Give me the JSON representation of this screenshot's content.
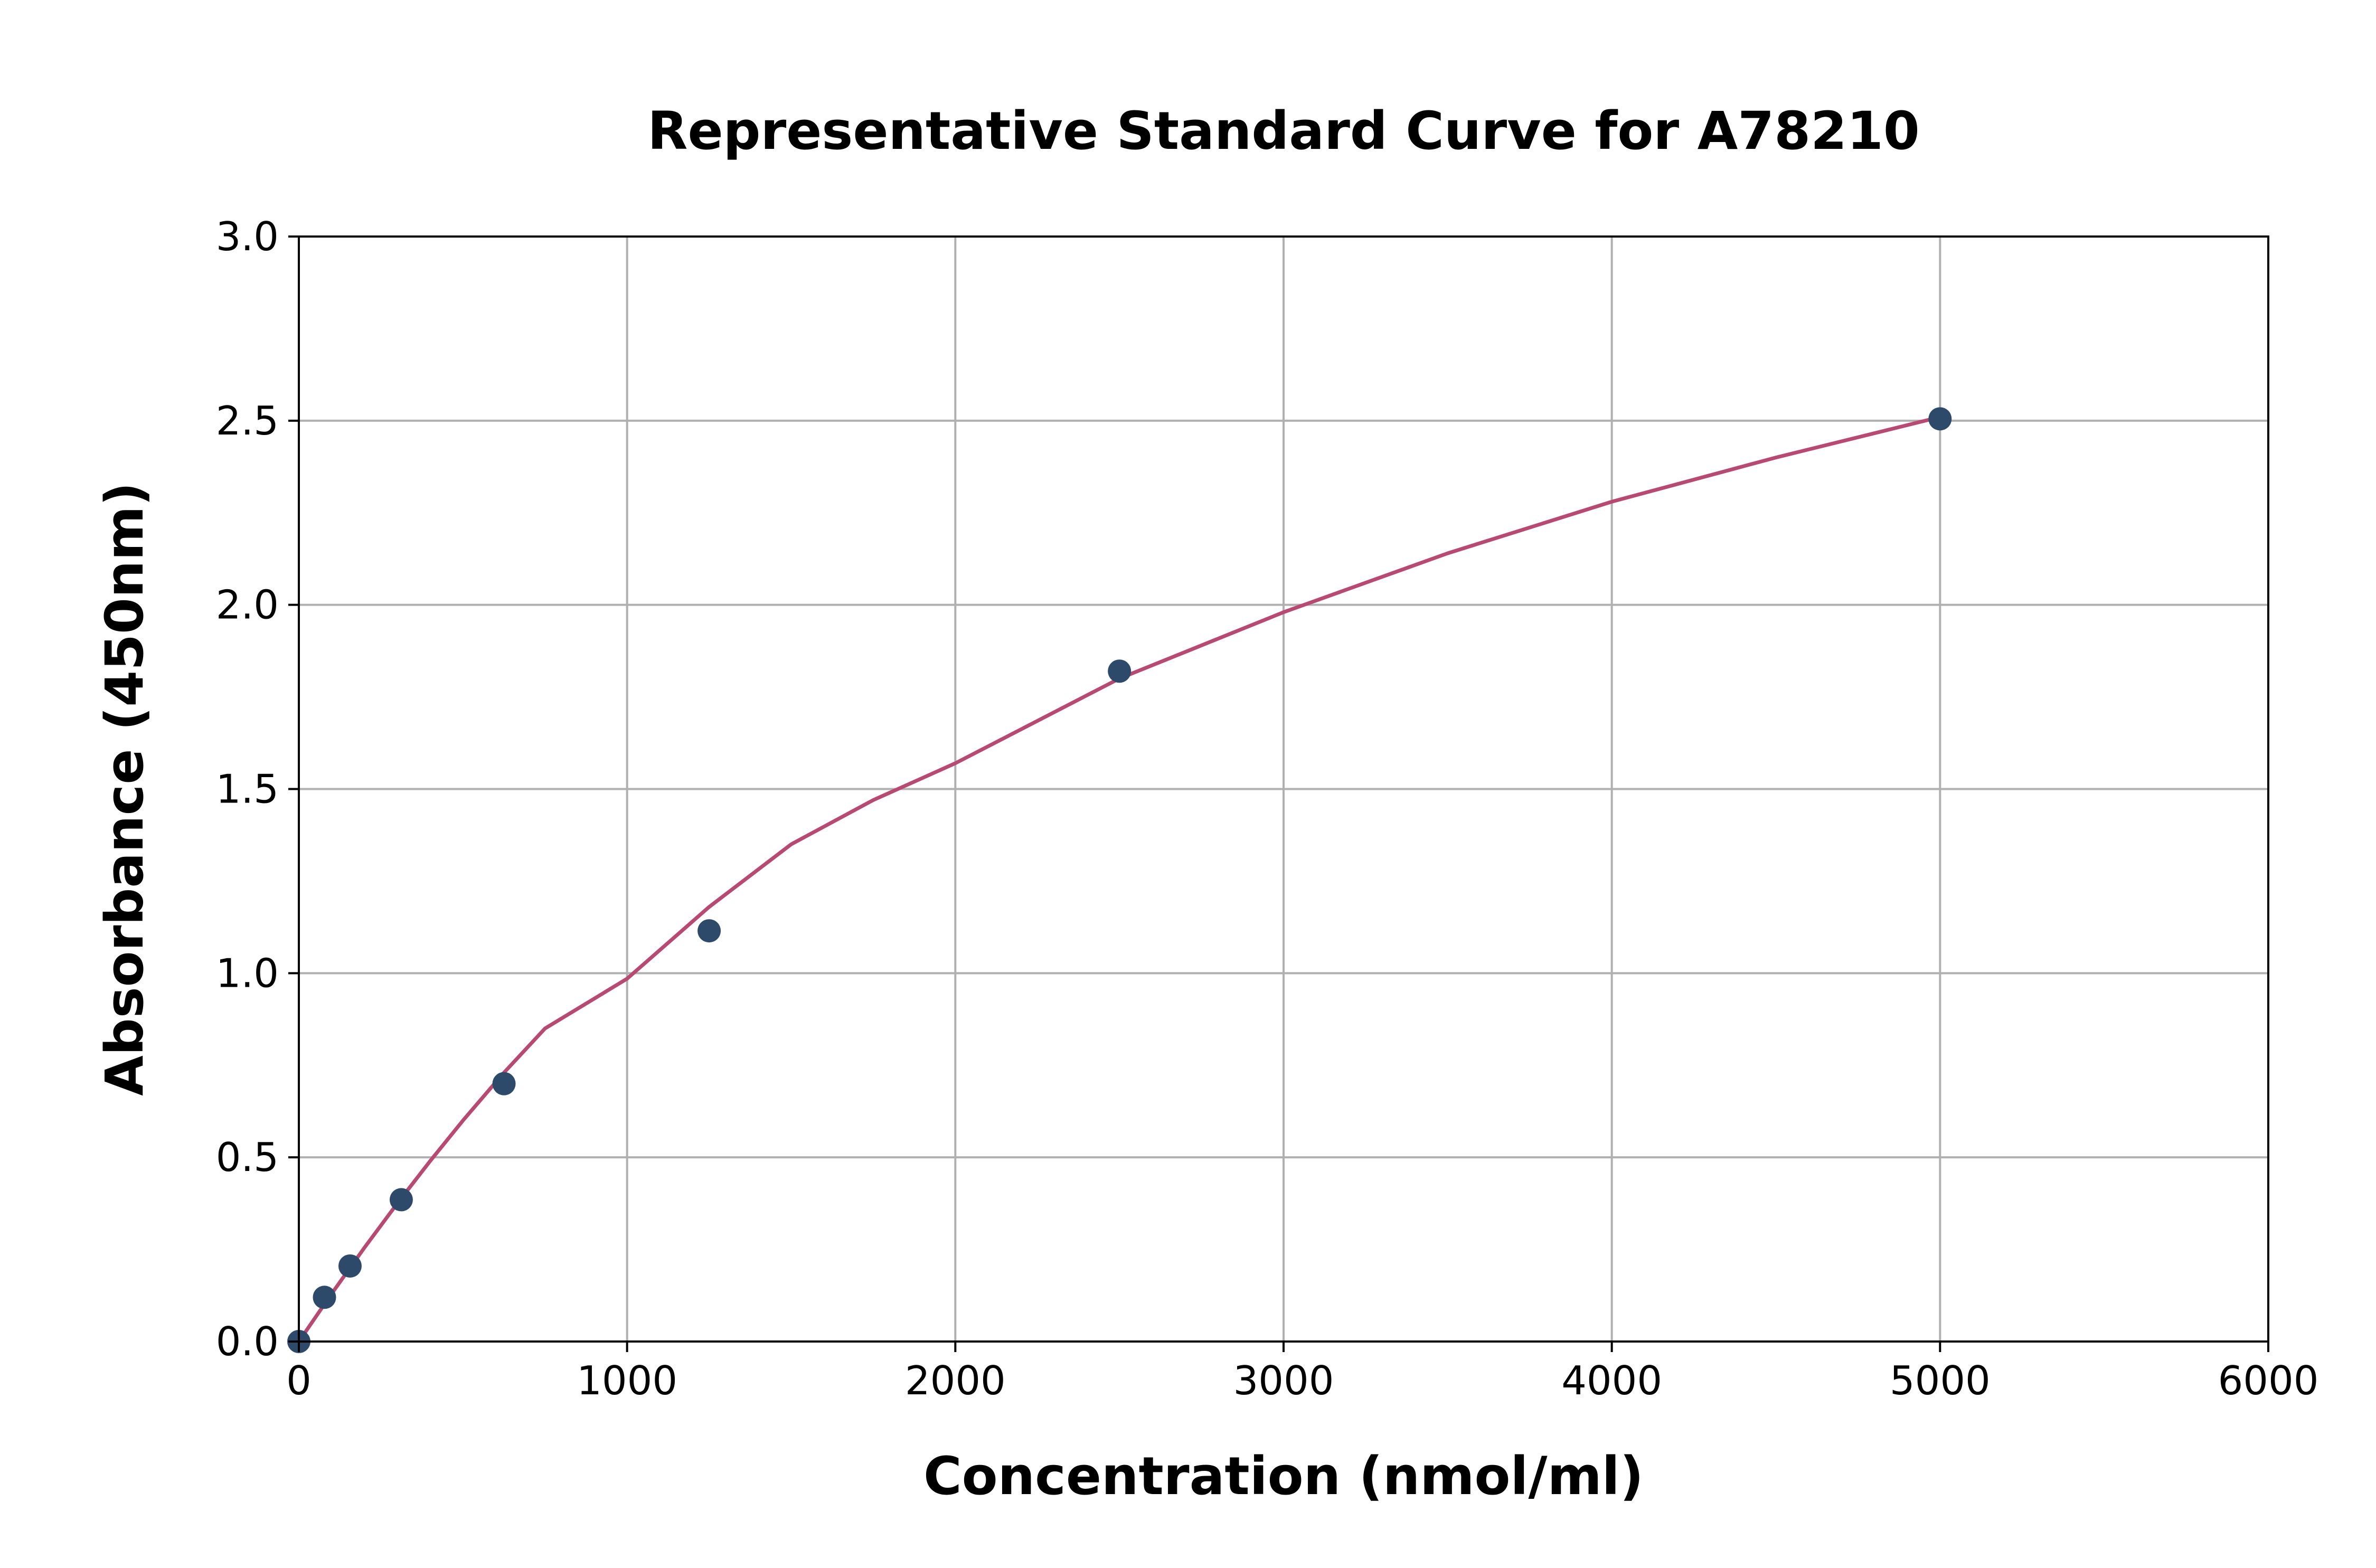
{
  "chart_data": {
    "type": "scatter",
    "title": "Representative Standard Curve for A78210",
    "xlabel": "Concentration (nmol/ml)",
    "ylabel": "Absorbance (450nm)",
    "xlim": [
      0,
      6000
    ],
    "ylim": [
      0,
      3.0
    ],
    "x_ticks": [
      0,
      1000,
      2000,
      3000,
      4000,
      5000,
      6000
    ],
    "x_tick_labels": [
      "0",
      "1000",
      "2000",
      "3000",
      "4000",
      "5000",
      "6000"
    ],
    "y_ticks": [
      0,
      0.5,
      1.0,
      1.5,
      2.0,
      2.5,
      3.0
    ],
    "y_tick_labels": [
      "0.0",
      "0.5",
      "1.0",
      "1.5",
      "2.0",
      "2.5",
      "3.0"
    ],
    "grid": true,
    "series": [
      {
        "type": "scatter",
        "color": "#2e4a6b",
        "x": [
          0,
          78,
          156,
          312,
          625,
          1250,
          2500,
          5000
        ],
        "y": [
          0.0,
          0.12,
          0.205,
          0.385,
          0.7,
          1.115,
          1.82,
          2.505
        ]
      },
      {
        "type": "line",
        "color": "#b84a72",
        "x": [
          0,
          50,
          100,
          200,
          300,
          400,
          500,
          625,
          750,
          1000,
          1250,
          1500,
          1750,
          2000,
          2500,
          3000,
          3500,
          4000,
          4500,
          5000
        ],
        "y": [
          0.0,
          0.065,
          0.13,
          0.255,
          0.375,
          0.49,
          0.6,
          0.73,
          0.85,
          0.985,
          1.18,
          1.35,
          1.47,
          1.57,
          1.8,
          1.98,
          2.14,
          2.28,
          2.4,
          2.51
        ]
      }
    ]
  }
}
